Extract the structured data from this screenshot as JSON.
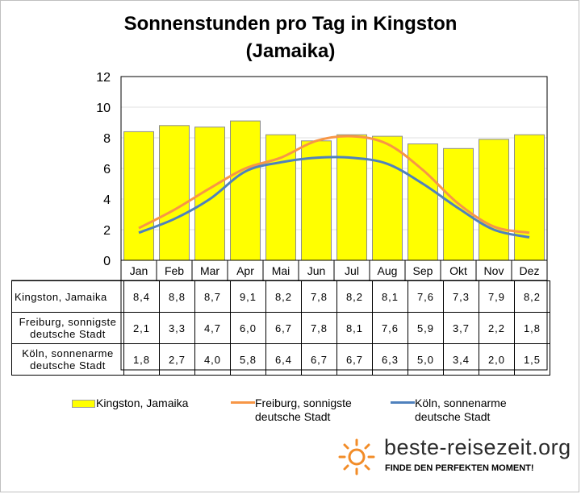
{
  "title_line1": "Sonnenstunden pro Tag in Kingston",
  "title_line2": "(Jamaika)",
  "chart_data": {
    "type": "bar",
    "categories": [
      "Jan",
      "Feb",
      "Mar",
      "Apr",
      "Mai",
      "Jun",
      "Jul",
      "Aug",
      "Sep",
      "Okt",
      "Nov",
      "Dez"
    ],
    "ylim": [
      0,
      12
    ],
    "yticks": [
      "0",
      "2",
      "4",
      "6",
      "8",
      "10",
      "12"
    ],
    "series": [
      {
        "name": "Kingston, Jamaika",
        "kind": "bar",
        "color": "#ffff00",
        "values": [
          8.4,
          8.8,
          8.7,
          9.1,
          8.2,
          7.8,
          8.2,
          8.1,
          7.6,
          7.3,
          7.9,
          8.2
        ]
      },
      {
        "name": "Freiburg, sonnigste deutsche Stadt",
        "kind": "line",
        "color": "#f79646",
        "values": [
          2.1,
          3.3,
          4.7,
          6.0,
          6.7,
          7.8,
          8.1,
          7.6,
          5.9,
          3.7,
          2.2,
          1.8
        ]
      },
      {
        "name": "Köln, sonnenarme deutsche Stadt",
        "kind": "line",
        "color": "#4f81bd",
        "values": [
          1.8,
          2.7,
          4.0,
          5.8,
          6.4,
          6.7,
          6.7,
          6.3,
          5.0,
          3.4,
          2.0,
          1.5
        ]
      }
    ],
    "grid": true,
    "legend": "bottom"
  },
  "table": {
    "rows": [
      {
        "label_line1": "Kingston, Jamaika",
        "label_line2": "",
        "cells": [
          "8,4",
          "8,8",
          "8,7",
          "9,1",
          "8,2",
          "7,8",
          "8,2",
          "8,1",
          "7,6",
          "7,3",
          "7,9",
          "8,2"
        ]
      },
      {
        "label_line1": "Freiburg, sonnigste",
        "label_line2": "deutsche Stadt",
        "cells": [
          "2,1",
          "3,3",
          "4,7",
          "6,0",
          "6,7",
          "7,8",
          "8,1",
          "7,6",
          "5,9",
          "3,7",
          "2,2",
          "1,8"
        ]
      },
      {
        "label_line1": "Köln, sonnenarme",
        "label_line2": "deutsche Stadt",
        "cells": [
          "1,8",
          "2,7",
          "4,0",
          "5,8",
          "6,4",
          "6,7",
          "6,7",
          "6,3",
          "5,0",
          "3,4",
          "2,0",
          "1,5"
        ]
      }
    ]
  },
  "legend": {
    "kingston_line1": "Kingston, Jamaika",
    "freiburg_line1": "Freiburg, sonnigste",
    "freiburg_line2": "deutsche Stadt",
    "koeln_line1": "Köln, sonnenarme",
    "koeln_line2": "deutsche Stadt"
  },
  "brand": {
    "name": "beste-reisezeit.org",
    "slogan": "FINDE DEN PERFEKTEN MOMENT!",
    "logo_icon": "sun-icon",
    "logo_color": "#f28c28"
  }
}
